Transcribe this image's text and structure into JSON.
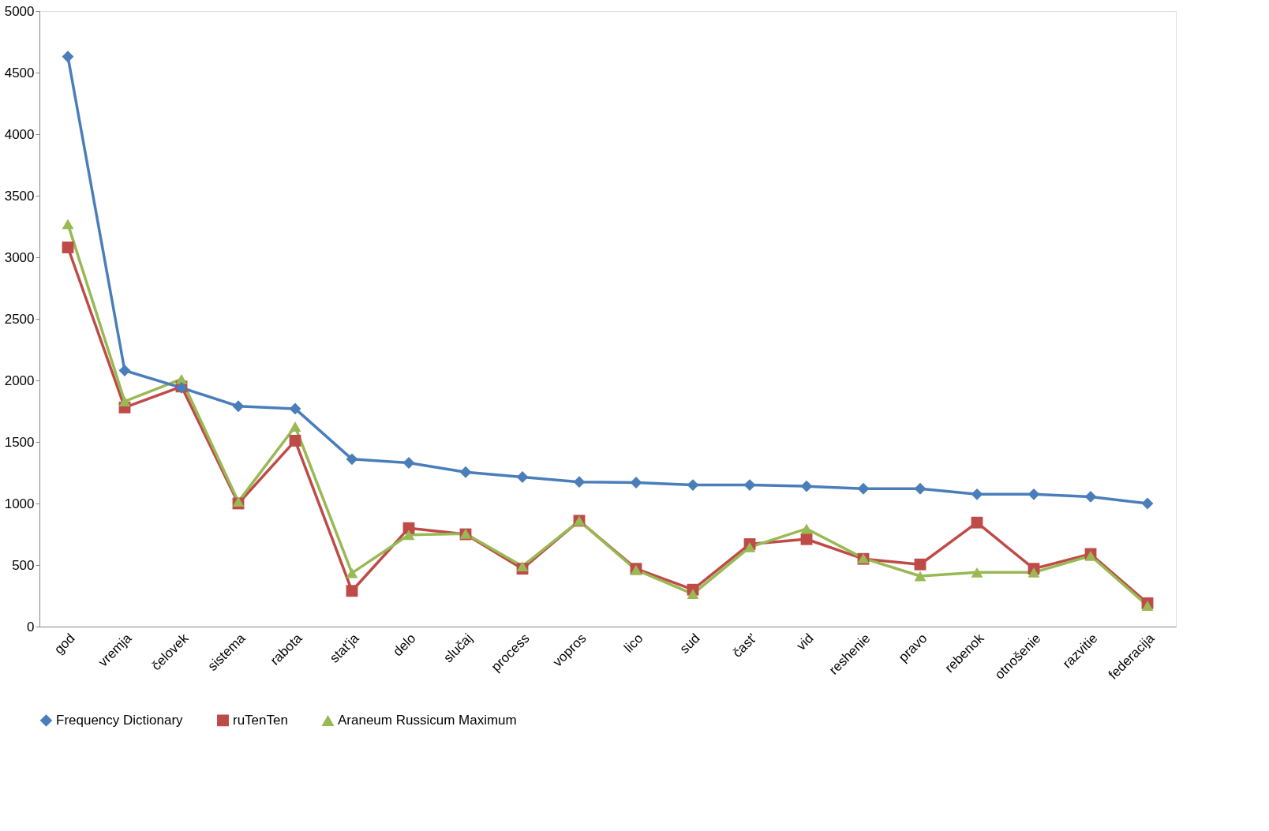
{
  "chart_data": {
    "type": "line",
    "categories": [
      "god",
      "vremja",
      "čelovek",
      "sistema",
      "rabota",
      "stat'ja",
      "delo",
      "slučaj",
      "process",
      "vopros",
      "lico",
      "sud",
      "čast'",
      "vid",
      "reshenie",
      "pravo",
      "rebenok",
      "otnošenie",
      "razvitie",
      "federacija"
    ],
    "series": [
      {
        "name": "Frequency Dictionary",
        "color": "#4a7ebb",
        "marker": "diamond",
        "values": [
          4630,
          2080,
          1940,
          1790,
          1770,
          1360,
          1330,
          1255,
          1215,
          1175,
          1170,
          1150,
          1150,
          1140,
          1120,
          1120,
          1075,
          1075,
          1055,
          1000
        ]
      },
      {
        "name": "ruTenTen",
        "color": "#be4b48",
        "marker": "square",
        "values": [
          3080,
          1780,
          1950,
          1000,
          1510,
          290,
          800,
          750,
          470,
          860,
          470,
          300,
          670,
          710,
          550,
          505,
          845,
          470,
          590,
          190
        ]
      },
      {
        "name": "Araneum Russicum Maximum",
        "color": "#98b954",
        "marker": "triangle",
        "values": [
          3270,
          1830,
          2010,
          1015,
          1625,
          435,
          745,
          755,
          490,
          860,
          460,
          265,
          645,
          795,
          555,
          410,
          440,
          440,
          575,
          170
        ]
      }
    ],
    "ylim": [
      0,
      5000
    ],
    "yticks": [
      0,
      500,
      1000,
      1500,
      2000,
      2500,
      3000,
      3500,
      4000,
      4500,
      5000
    ],
    "grid": false,
    "legend": "bottom",
    "line_style": "solid"
  }
}
